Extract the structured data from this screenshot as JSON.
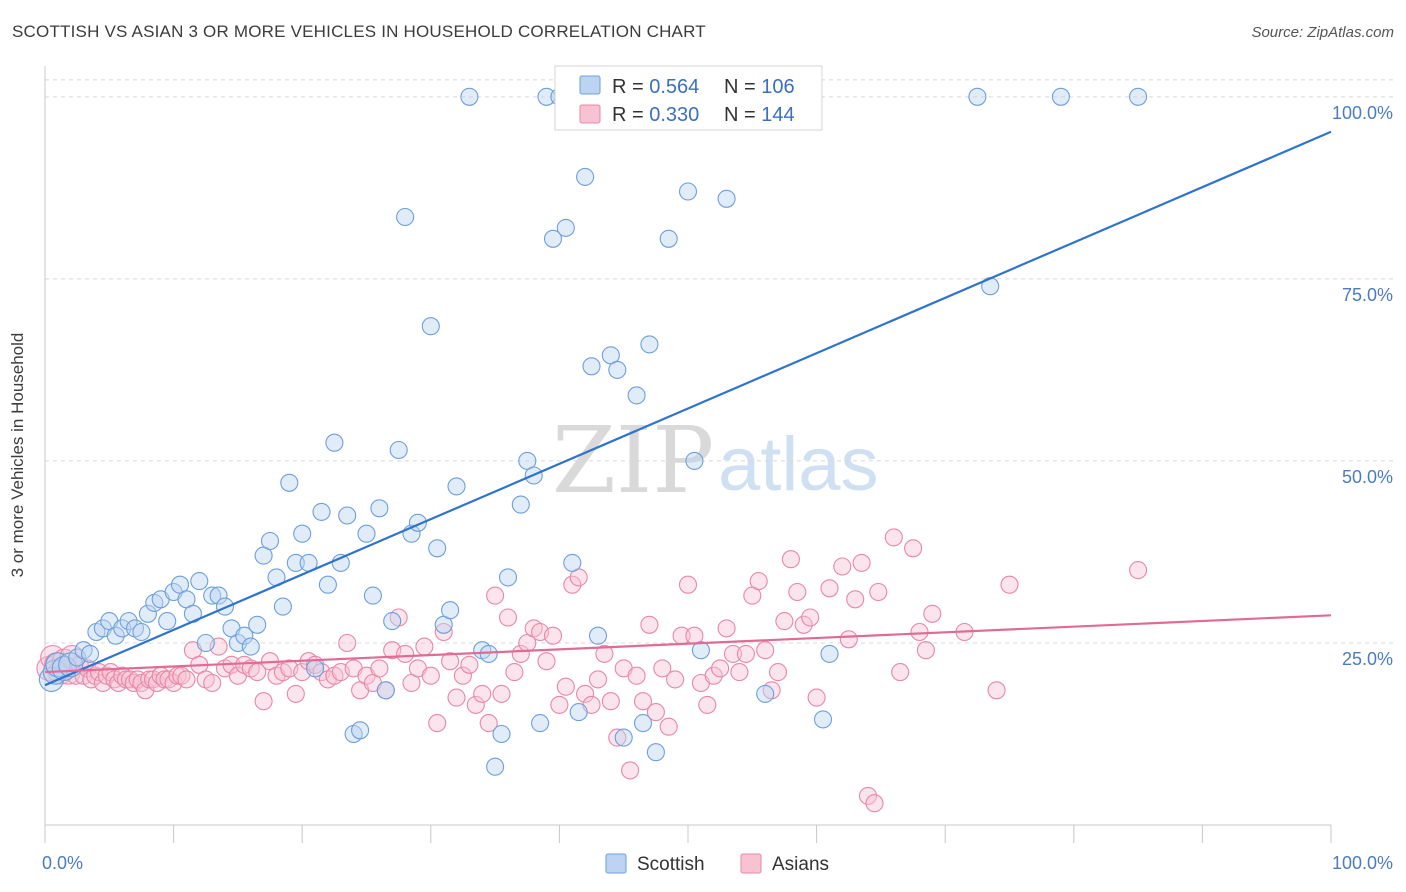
{
  "title": "SCOTTISH VS ASIAN 3 OR MORE VEHICLES IN HOUSEHOLD CORRELATION CHART",
  "source": "Source: ZipAtlas.com",
  "watermark": {
    "zip": "ZIP",
    "atlas": "atlas"
  },
  "legend": {
    "rows": [
      {
        "r_label": "R = ",
        "r_value": "0.564",
        "n_label": "N = ",
        "n_value": "106"
      },
      {
        "r_label": "R = ",
        "r_value": "0.330",
        "n_label": "N = ",
        "n_value": "144"
      }
    ]
  },
  "colors": {
    "scottish_fill": "#bcd4f2",
    "scottish_stroke": "#6d9fdc",
    "scottish_line": "#2f74cc",
    "asian_fill": "#f7c3d3",
    "asian_stroke": "#e887a8",
    "asian_line": "#e06b94",
    "grid": "#d8d8d8",
    "axis": "#c8c8c8"
  },
  "chart_data": {
    "type": "scatter",
    "title": "SCOTTISH VS ASIAN 3 OR MORE VEHICLES IN HOUSEHOLD CORRELATION CHART",
    "xlabel": "",
    "ylabel": "3 or more Vehicles in Household",
    "xlim": [
      0,
      100
    ],
    "ylim": [
      0,
      103
    ],
    "x_tick_labels": [
      "0.0%",
      "100.0%"
    ],
    "y_ticks": [
      25,
      50,
      75,
      100
    ],
    "y_tick_labels": [
      "25.0%",
      "50.0%",
      "75.0%",
      "100.0%"
    ],
    "grid": true,
    "legend_placement": "top-center",
    "series": [
      {
        "name": "Scottish",
        "r": 0.564,
        "n": 106,
        "trend": [
          [
            0,
            19.2
          ],
          [
            100,
            95.2
          ]
        ],
        "points": [
          [
            0.5,
            20
          ],
          [
            0.8,
            21
          ],
          [
            1,
            22
          ],
          [
            1.5,
            21.5
          ],
          [
            2,
            22
          ],
          [
            2.5,
            23
          ],
          [
            3,
            24
          ],
          [
            3.5,
            23.5
          ],
          [
            4,
            26.5
          ],
          [
            4.5,
            27
          ],
          [
            5,
            28
          ],
          [
            5.5,
            26
          ],
          [
            6,
            27
          ],
          [
            6.5,
            28
          ],
          [
            7,
            27
          ],
          [
            7.5,
            26.5
          ],
          [
            8,
            29
          ],
          [
            8.5,
            30.5
          ],
          [
            9,
            31
          ],
          [
            9.5,
            28
          ],
          [
            10,
            32
          ],
          [
            10.5,
            33
          ],
          [
            11,
            31
          ],
          [
            11.5,
            29
          ],
          [
            12,
            33.5
          ],
          [
            12.5,
            25
          ],
          [
            13,
            31.5
          ],
          [
            13.5,
            31.5
          ],
          [
            14,
            30
          ],
          [
            14.5,
            27
          ],
          [
            15,
            25
          ],
          [
            15.5,
            26
          ],
          [
            16,
            24.5
          ],
          [
            16.5,
            27.5
          ],
          [
            17,
            37
          ],
          [
            17.5,
            39
          ],
          [
            18,
            34
          ],
          [
            18.5,
            30
          ],
          [
            19,
            47
          ],
          [
            19.5,
            36
          ],
          [
            20,
            40
          ],
          [
            20.5,
            36
          ],
          [
            21,
            21.5
          ],
          [
            21.5,
            43
          ],
          [
            22,
            33
          ],
          [
            22.5,
            52.5
          ],
          [
            23,
            36
          ],
          [
            23.5,
            42.5
          ],
          [
            24,
            12.5
          ],
          [
            24.5,
            13
          ],
          [
            25,
            40
          ],
          [
            25.5,
            31.5
          ],
          [
            26,
            43.5
          ],
          [
            26.5,
            18.5
          ],
          [
            27,
            28
          ],
          [
            27.5,
            51.5
          ],
          [
            28,
            83.5
          ],
          [
            28.5,
            40
          ],
          [
            29,
            41.5
          ],
          [
            30,
            68.5
          ],
          [
            30.5,
            38
          ],
          [
            31,
            27.5
          ],
          [
            31.5,
            29.5
          ],
          [
            32,
            46.5
          ],
          [
            33,
            100
          ],
          [
            34,
            24
          ],
          [
            34.5,
            23.5
          ],
          [
            35,
            8
          ],
          [
            35.5,
            12.5
          ],
          [
            36,
            34
          ],
          [
            37,
            44
          ],
          [
            37.5,
            50
          ],
          [
            38,
            48
          ],
          [
            38.5,
            14
          ],
          [
            39,
            100
          ],
          [
            39.5,
            80.5
          ],
          [
            40,
            100
          ],
          [
            40.5,
            82
          ],
          [
            41,
            36
          ],
          [
            41.5,
            15.5
          ],
          [
            42,
            89
          ],
          [
            42.5,
            63
          ],
          [
            43,
            26
          ],
          [
            44,
            64.5
          ],
          [
            44.5,
            62.5
          ],
          [
            45,
            12
          ],
          [
            46,
            59
          ],
          [
            46.5,
            14
          ],
          [
            47,
            66
          ],
          [
            47.5,
            10
          ],
          [
            48.5,
            80.5
          ],
          [
            50,
            87
          ],
          [
            50.5,
            50
          ],
          [
            51,
            24
          ],
          [
            52,
            100
          ],
          [
            53,
            86
          ],
          [
            56,
            18
          ],
          [
            57,
            100
          ],
          [
            58,
            100
          ],
          [
            60.5,
            14.5
          ],
          [
            61,
            23.5
          ],
          [
            72.5,
            100
          ],
          [
            73.5,
            74
          ],
          [
            79,
            100
          ],
          [
            85,
            100
          ]
        ]
      },
      {
        "name": "Asians",
        "r": 0.33,
        "n": 144,
        "trend": [
          [
            0,
            21.0
          ],
          [
            100,
            28.8
          ]
        ],
        "points": [
          [
            0.3,
            21.5
          ],
          [
            0.6,
            23
          ],
          [
            0.9,
            22
          ],
          [
            1.2,
            21
          ],
          [
            1.5,
            22.5
          ],
          [
            1.8,
            21
          ],
          [
            2.1,
            23
          ],
          [
            2.4,
            20.5
          ],
          [
            2.7,
            22
          ],
          [
            3,
            20.5
          ],
          [
            3.3,
            21.5
          ],
          [
            3.6,
            20
          ],
          [
            3.9,
            20.5
          ],
          [
            4.2,
            21
          ],
          [
            4.5,
            19.5
          ],
          [
            4.8,
            20.5
          ],
          [
            5.1,
            21
          ],
          [
            5.4,
            20
          ],
          [
            5.7,
            19.5
          ],
          [
            6,
            20.5
          ],
          [
            6.3,
            20
          ],
          [
            6.6,
            20
          ],
          [
            6.9,
            19.5
          ],
          [
            7.2,
            20
          ],
          [
            7.5,
            19.5
          ],
          [
            7.8,
            18.5
          ],
          [
            8.1,
            20
          ],
          [
            8.4,
            20
          ],
          [
            8.7,
            19.5
          ],
          [
            9,
            20.5
          ],
          [
            9.3,
            20
          ],
          [
            9.6,
            20
          ],
          [
            10,
            19.5
          ],
          [
            10.3,
            20.5
          ],
          [
            10.6,
            20.5
          ],
          [
            11,
            20
          ],
          [
            11.5,
            24
          ],
          [
            12,
            22
          ],
          [
            12.5,
            20
          ],
          [
            13,
            19.5
          ],
          [
            13.5,
            24.5
          ],
          [
            14,
            21.5
          ],
          [
            14.5,
            22
          ],
          [
            15,
            20.5
          ],
          [
            15.5,
            22
          ],
          [
            16,
            21.5
          ],
          [
            16.5,
            21
          ],
          [
            17,
            17
          ],
          [
            17.5,
            22.5
          ],
          [
            18,
            20.5
          ],
          [
            18.5,
            21
          ],
          [
            19,
            21.5
          ],
          [
            19.5,
            18
          ],
          [
            20,
            21
          ],
          [
            20.5,
            22.5
          ],
          [
            21,
            22
          ],
          [
            21.5,
            21
          ],
          [
            22,
            20
          ],
          [
            22.5,
            20.5
          ],
          [
            23,
            21
          ],
          [
            23.5,
            25
          ],
          [
            24,
            21.5
          ],
          [
            24.5,
            18.5
          ],
          [
            25,
            20.5
          ],
          [
            25.5,
            19.5
          ],
          [
            26,
            21.5
          ],
          [
            26.5,
            18.5
          ],
          [
            27,
            24
          ],
          [
            27.5,
            28.5
          ],
          [
            28,
            23.5
          ],
          [
            28.5,
            19.5
          ],
          [
            29,
            21.5
          ],
          [
            29.5,
            24.5
          ],
          [
            30,
            20.5
          ],
          [
            30.5,
            14
          ],
          [
            31,
            26.5
          ],
          [
            31.5,
            22.5
          ],
          [
            32,
            17.5
          ],
          [
            32.5,
            20.5
          ],
          [
            33,
            22
          ],
          [
            33.5,
            16.5
          ],
          [
            34,
            18
          ],
          [
            34.5,
            14
          ],
          [
            35,
            31.5
          ],
          [
            35.5,
            18
          ],
          [
            36,
            28.5
          ],
          [
            36.5,
            21
          ],
          [
            37,
            23.5
          ],
          [
            37.5,
            25
          ],
          [
            38,
            27
          ],
          [
            38.5,
            26.5
          ],
          [
            39,
            22.5
          ],
          [
            39.5,
            26
          ],
          [
            40,
            16.5
          ],
          [
            40.5,
            19
          ],
          [
            41,
            33
          ],
          [
            41.5,
            34
          ],
          [
            42,
            18
          ],
          [
            42.5,
            16.5
          ],
          [
            43,
            20
          ],
          [
            43.5,
            23.5
          ],
          [
            44,
            17
          ],
          [
            44.5,
            12
          ],
          [
            45,
            21.5
          ],
          [
            45.5,
            7.5
          ],
          [
            46,
            20.5
          ],
          [
            46.5,
            17
          ],
          [
            47,
            27.5
          ],
          [
            47.5,
            15.5
          ],
          [
            48,
            21.5
          ],
          [
            48.5,
            13.5
          ],
          [
            49,
            20
          ],
          [
            49.5,
            26
          ],
          [
            50,
            33
          ],
          [
            50.5,
            26
          ],
          [
            51,
            19.5
          ],
          [
            51.5,
            16.5
          ],
          [
            52,
            20.5
          ],
          [
            52.5,
            21.5
          ],
          [
            53,
            27
          ],
          [
            53.5,
            23.5
          ],
          [
            54,
            21
          ],
          [
            54.5,
            23.5
          ],
          [
            55,
            31.5
          ],
          [
            55.5,
            33.5
          ],
          [
            56,
            24
          ],
          [
            56.5,
            18.5
          ],
          [
            57,
            21
          ],
          [
            57.5,
            28
          ],
          [
            58,
            36.5
          ],
          [
            58.5,
            32
          ],
          [
            59,
            27.5
          ],
          [
            59.5,
            28.5
          ],
          [
            60,
            17.5
          ],
          [
            61,
            32.5
          ],
          [
            62,
            35.5
          ],
          [
            62.5,
            25.5
          ],
          [
            63,
            31
          ],
          [
            63.5,
            36
          ],
          [
            64,
            4
          ],
          [
            64.5,
            3
          ],
          [
            64.8,
            32
          ],
          [
            66,
            39.5
          ],
          [
            66.5,
            21
          ],
          [
            67.5,
            38
          ],
          [
            68,
            26.5
          ],
          [
            68.5,
            24
          ],
          [
            69,
            29
          ],
          [
            71.5,
            26.5
          ],
          [
            74,
            18.5
          ],
          [
            75,
            33
          ],
          [
            85,
            35
          ]
        ]
      }
    ]
  },
  "bottom_legend": [
    {
      "name": "Scottish"
    },
    {
      "name": "Asians"
    }
  ]
}
